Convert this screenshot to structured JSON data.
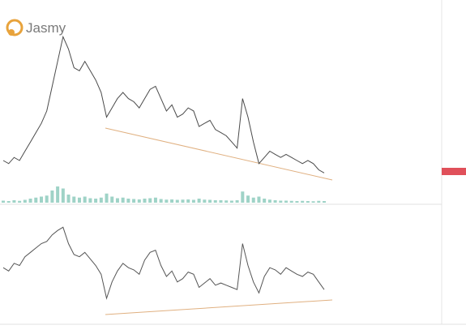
{
  "logo": "Jasmy",
  "chart_data": [
    {
      "type": "line",
      "color": "#4a4a4a",
      "ylim": [
        0.005,
        0.06
      ],
      "values": [
        0.016,
        0.015,
        0.017,
        0.016,
        0.019,
        0.022,
        0.025,
        0.028,
        0.032,
        0.04,
        0.048,
        0.056,
        0.052,
        0.046,
        0.045,
        0.048,
        0.045,
        0.042,
        0.038,
        0.03,
        0.033,
        0.036,
        0.038,
        0.036,
        0.035,
        0.033,
        0.036,
        0.039,
        0.04,
        0.036,
        0.032,
        0.034,
        0.03,
        0.031,
        0.033,
        0.032,
        0.027,
        0.028,
        0.029,
        0.026,
        0.025,
        0.024,
        0.022,
        0.02,
        0.036,
        0.03,
        0.022,
        0.015,
        0.017,
        0.019,
        0.018,
        0.017,
        0.018,
        0.017,
        0.016,
        0.015,
        0.016,
        0.015,
        0.013,
        0.012
      ]
    },
    {
      "type": "bar",
      "color": "#9fd3c7",
      "ylim": [
        0,
        100
      ],
      "values": [
        10,
        8,
        12,
        9,
        14,
        20,
        25,
        30,
        35,
        60,
        80,
        70,
        40,
        30,
        25,
        30,
        22,
        20,
        25,
        45,
        30,
        22,
        25,
        20,
        18,
        16,
        20,
        22,
        25,
        18,
        15,
        16,
        14,
        15,
        16,
        14,
        20,
        15,
        14,
        12,
        12,
        11,
        10,
        12,
        55,
        35,
        25,
        30,
        20,
        15,
        12,
        10,
        10,
        9,
        8,
        9,
        8,
        7,
        9,
        8
      ]
    },
    {
      "type": "line",
      "color": "#555555",
      "ylim": [
        0,
        100
      ],
      "values": [
        48,
        45,
        52,
        50,
        58,
        62,
        66,
        70,
        72,
        78,
        82,
        85,
        70,
        60,
        58,
        62,
        56,
        50,
        42,
        20,
        35,
        45,
        52,
        48,
        46,
        42,
        55,
        62,
        64,
        50,
        40,
        45,
        35,
        38,
        44,
        42,
        30,
        34,
        38,
        32,
        34,
        32,
        30,
        28,
        70,
        50,
        35,
        25,
        40,
        48,
        46,
        42,
        48,
        45,
        42,
        40,
        44,
        42,
        35,
        28
      ]
    }
  ]
}
